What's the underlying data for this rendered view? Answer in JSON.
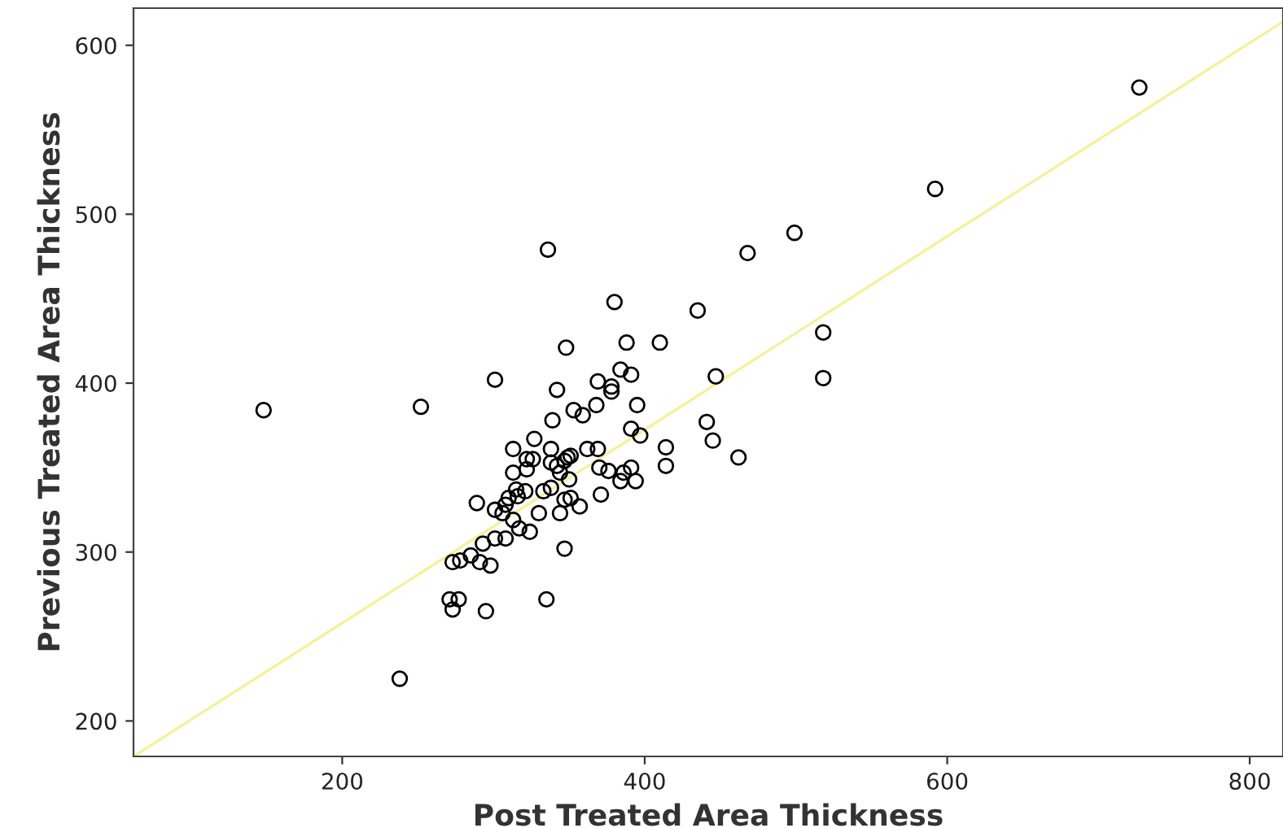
{
  "chart_data": {
    "type": "scatter",
    "xlabel": "Post Treated Area Thickness",
    "ylabel": "Previous Treated Area Thickness",
    "xlim": [
      62,
      822
    ],
    "ylim": [
      179,
      622
    ],
    "xticks": [
      200,
      400,
      600,
      800
    ],
    "yticks": [
      200,
      300,
      400,
      500,
      600
    ],
    "grid": false,
    "legend": false,
    "series": [
      {
        "marker": "circle",
        "color": "#000000",
        "x": [
          727,
          592,
          499,
          468,
          336,
          380,
          435,
          518,
          518,
          348,
          388,
          410,
          301,
          148,
          252,
          342,
          384,
          391,
          369,
          378,
          378,
          447,
          395,
          368,
          353,
          359,
          339,
          391,
          397,
          441,
          445,
          414,
          414,
          462,
          327,
          313,
          338,
          349,
          351,
          362,
          369,
          322,
          326,
          338,
          342,
          347,
          322,
          313,
          344,
          350,
          370,
          376,
          391,
          386,
          384,
          394,
          371,
          357,
          344,
          347,
          351,
          338,
          333,
          321,
          315,
          316,
          310,
          308,
          301,
          306,
          289,
          313,
          330,
          317,
          324,
          301,
          308,
          293,
          347,
          273,
          278,
          285,
          291,
          298,
          271,
          277,
          273,
          295,
          335,
          238
        ],
        "values": [
          575,
          515,
          489,
          477,
          479,
          448,
          443,
          430,
          403,
          421,
          424,
          424,
          402,
          384,
          386,
          396,
          408,
          405,
          401,
          398,
          395,
          404,
          387,
          387,
          384,
          381,
          378,
          373,
          369,
          377,
          366,
          362,
          351,
          356,
          367,
          361,
          361,
          356,
          357,
          361,
          361,
          355,
          355,
          353,
          351,
          354,
          349,
          347,
          347,
          343,
          350,
          348,
          350,
          347,
          342,
          342,
          334,
          327,
          323,
          331,
          332,
          338,
          336,
          336,
          337,
          333,
          332,
          328,
          325,
          323,
          329,
          319,
          323,
          314,
          312,
          308,
          308,
          305,
          302,
          294,
          295,
          298,
          294,
          292,
          272,
          272,
          266,
          265,
          272,
          225
        ]
      },
      {
        "type": "line",
        "color": "#f5f19a",
        "line_style": "solid",
        "marker": "none",
        "x": [
          62,
          822
        ],
        "values": [
          179,
          614
        ]
      }
    ]
  }
}
